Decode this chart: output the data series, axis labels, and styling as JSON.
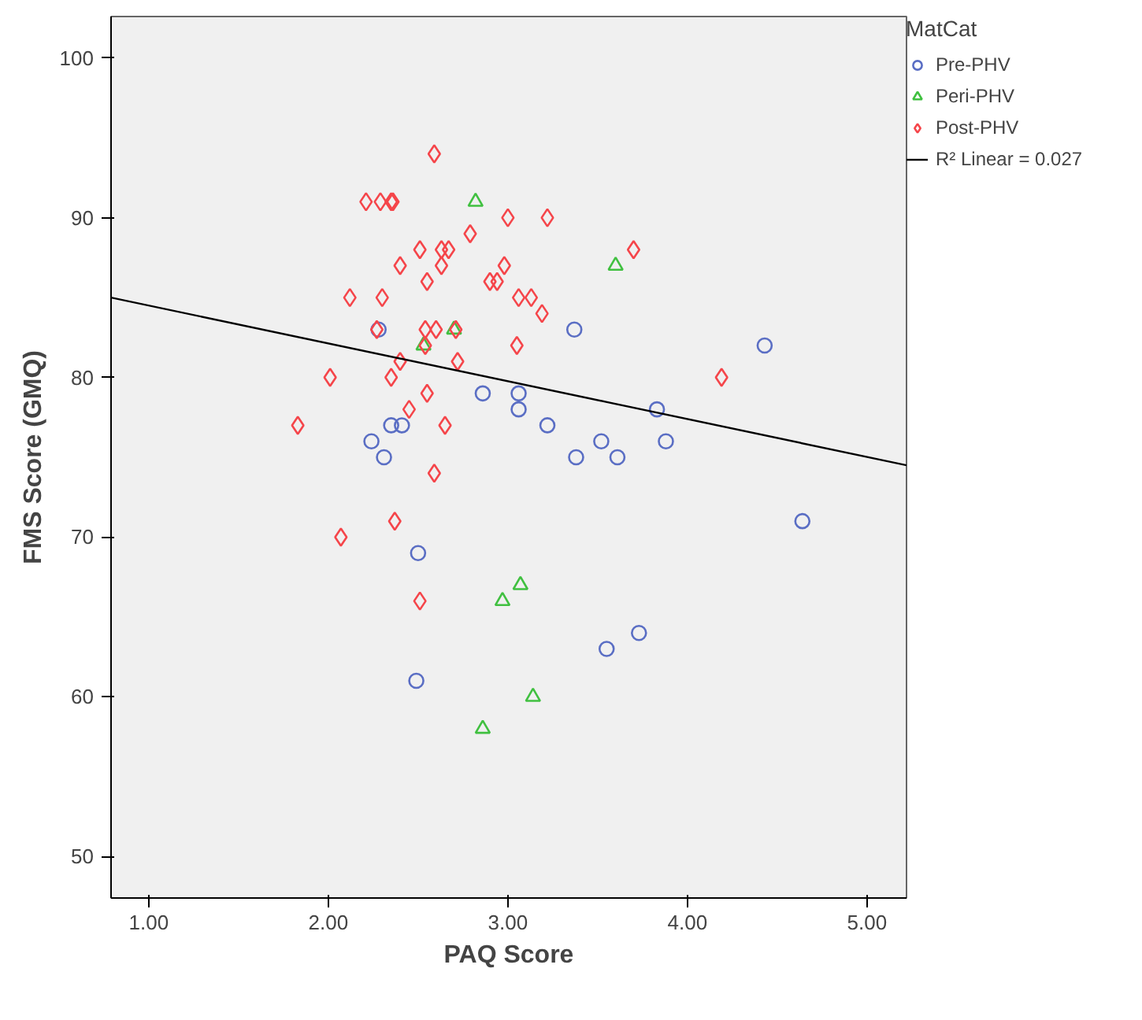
{
  "chart_data": {
    "type": "scatter",
    "xlabel": "PAQ Score",
    "ylabel": "FMS Score (GMQ)",
    "legend_title": "MatCat",
    "legend": "top right",
    "grid": false,
    "xlim": [
      0.79,
      5.22
    ],
    "ylim": [
      47.4,
      102.6
    ],
    "xticks": [
      {
        "value": 1,
        "label": "1.00"
      },
      {
        "value": 2,
        "label": "2.00"
      },
      {
        "value": 3,
        "label": "3.00"
      },
      {
        "value": 4,
        "label": "4.00"
      },
      {
        "value": 5,
        "label": "5.00"
      }
    ],
    "yticks": [
      50,
      60,
      70,
      80,
      90,
      100
    ],
    "annotations": [
      "R² Linear = 0.027"
    ],
    "series": [
      {
        "name": "Pre-PHV",
        "color": "#5a6ec4",
        "marker": "circle",
        "x": [
          2.28,
          2.24,
          2.35,
          2.41,
          2.31,
          2.5,
          2.49,
          2.86,
          3.06,
          3.06,
          3.22,
          3.37,
          3.38,
          3.52,
          3.61,
          3.83,
          3.88,
          4.43,
          4.64,
          3.73,
          3.55
        ],
        "values": [
          83,
          76,
          77,
          77,
          75,
          69,
          61,
          79,
          79,
          78,
          77,
          83,
          75,
          76,
          75,
          78,
          76,
          82,
          71,
          64,
          63
        ]
      },
      {
        "name": "Peri-PHV",
        "color": "#40c040",
        "marker": "triangle",
        "x": [
          2.82,
          3.6,
          2.7,
          2.53,
          3.07,
          2.97,
          3.14,
          2.86
        ],
        "values": [
          91,
          87,
          83,
          82,
          67,
          66,
          60,
          58
        ]
      },
      {
        "name": "Post-PHV",
        "color": "#f5454a",
        "marker": "diamond",
        "x": [
          2.59,
          2.21,
          2.29,
          2.35,
          2.36,
          3.0,
          3.22,
          2.79,
          2.51,
          2.63,
          2.67,
          2.4,
          2.63,
          2.98,
          2.55,
          2.9,
          2.94,
          2.12,
          2.3,
          3.06,
          3.13,
          3.19,
          2.27,
          2.54,
          2.6,
          2.71,
          3.05,
          2.54,
          2.4,
          2.72,
          2.01,
          2.35,
          2.55,
          2.45,
          1.83,
          2.65,
          2.59,
          2.37,
          2.07,
          2.51,
          3.7,
          4.19
        ],
        "values": [
          94,
          91,
          91,
          91,
          91,
          90,
          90,
          89,
          88,
          88,
          88,
          87,
          87,
          87,
          86,
          86,
          86,
          85,
          85,
          85,
          85,
          84,
          83,
          83,
          83,
          83,
          82,
          82,
          81,
          81,
          80,
          80,
          79,
          78,
          77,
          77,
          74,
          71,
          70,
          66,
          88,
          80
        ]
      },
      {
        "type": "line",
        "color": "#000000",
        "x": [
          0.79,
          5.22
        ],
        "values": [
          85.0,
          74.5
        ]
      }
    ]
  }
}
